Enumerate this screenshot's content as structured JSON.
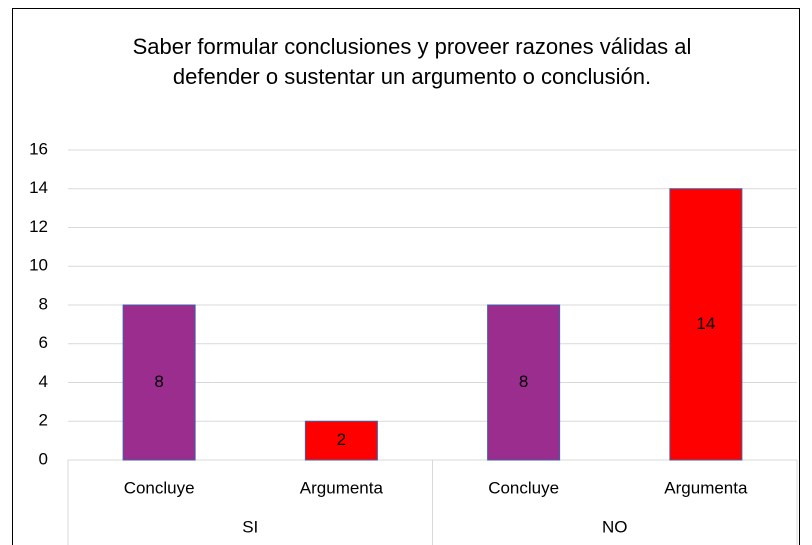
{
  "chart_data": {
    "type": "bar",
    "title": "Saber formular conclusiones y proveer razones válidas al defender o sustentar un argumento o conclusión.",
    "categories": [
      "Concluye",
      "Argumenta",
      "Concluye",
      "Argumenta"
    ],
    "groups": [
      {
        "name": "SI",
        "size": 2
      },
      {
        "name": "NO",
        "size": 2
      }
    ],
    "values": [
      8,
      2,
      8,
      14
    ],
    "colors": [
      "#9b2d8f",
      "#ff0000",
      "#9b2d8f",
      "#ff0000"
    ],
    "ylim": [
      0,
      16
    ],
    "yticks": [
      0,
      2,
      4,
      6,
      8,
      10,
      12,
      14,
      16
    ],
    "grid": true
  }
}
